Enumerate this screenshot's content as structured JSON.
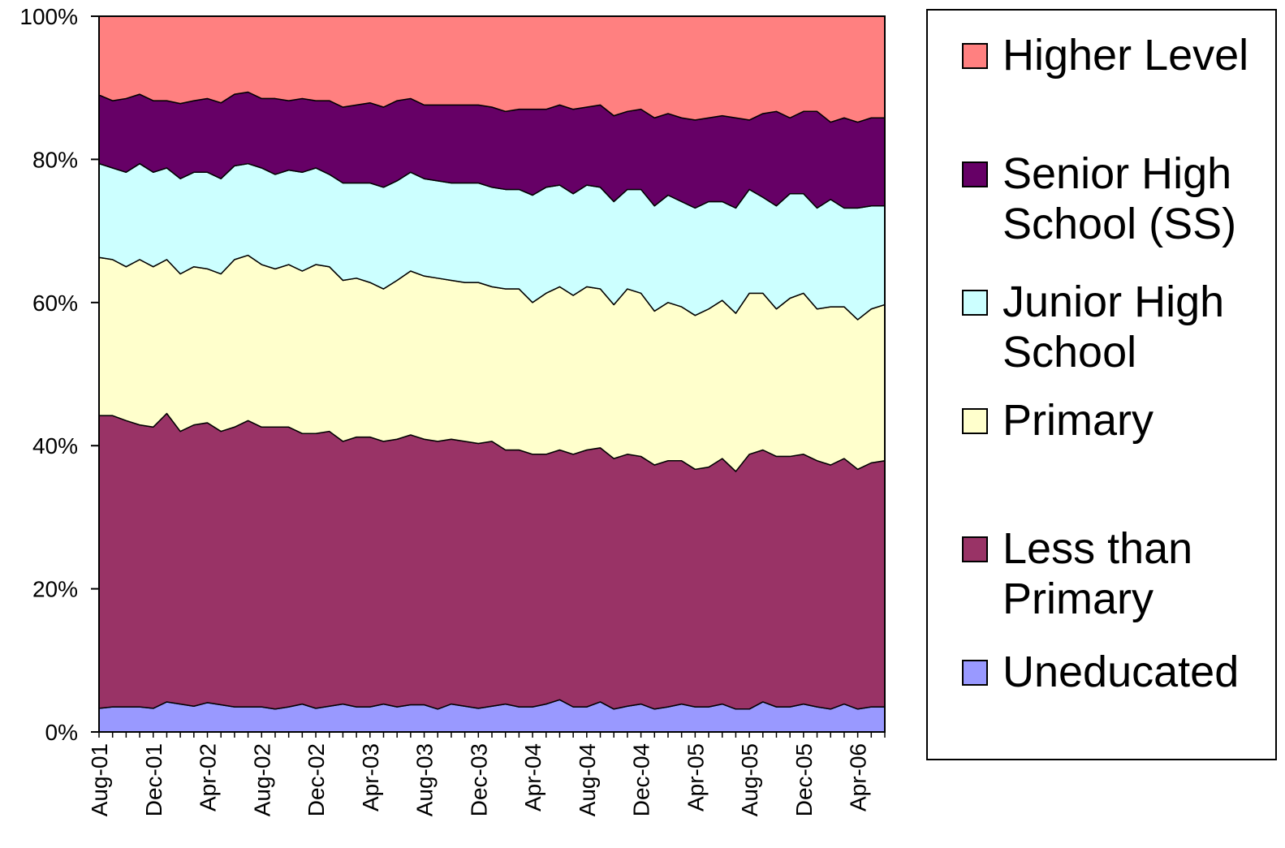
{
  "chart_data": {
    "type": "area",
    "stacked": true,
    "percent": true,
    "title": "",
    "xlabel": "",
    "ylabel": "",
    "ylim": [
      0,
      100
    ],
    "y_ticks": [
      "0%",
      "20%",
      "40%",
      "60%",
      "80%",
      "100%"
    ],
    "x_tick_labels": [
      "Aug-01",
      "Dec-01",
      "Apr-02",
      "Aug-02",
      "Dec-02",
      "Apr-03",
      "Aug-03",
      "Dec-03",
      "Apr-04",
      "Aug-04",
      "Dec-04",
      "Apr-05",
      "Aug-05",
      "Dec-05",
      "Apr-06"
    ],
    "legend_position": "right",
    "cumulative_boundaries": [
      {
        "name": "Uneducated",
        "color": "#9999FF",
        "values": [
          3.3,
          3.5,
          3.5,
          3.5,
          3.3,
          4.2,
          3.9,
          3.6,
          4.1,
          3.8,
          3.5,
          3.5,
          3.5,
          3.2,
          3.5,
          3.9,
          3.3,
          3.6,
          3.9,
          3.5,
          3.5,
          3.9,
          3.5,
          3.8,
          3.8,
          3.2,
          3.9,
          3.6,
          3.3,
          3.6,
          3.9,
          3.5,
          3.5,
          3.9,
          4.5,
          3.5,
          3.5,
          4.2,
          3.2,
          3.6,
          3.9,
          3.2,
          3.5,
          3.9,
          3.5,
          3.5,
          3.9,
          3.2,
          3.2,
          4.2,
          3.5,
          3.5,
          3.9,
          3.5,
          3.2,
          3.9,
          3.2,
          3.5,
          3.5
        ]
      },
      {
        "name": "Less than Primary",
        "color": "#993366",
        "values": [
          44.2,
          44.2,
          43.5,
          42.9,
          42.6,
          44.5,
          42.0,
          42.9,
          43.2,
          42.0,
          42.6,
          43.5,
          42.6,
          42.6,
          42.6,
          41.7,
          41.7,
          42.0,
          40.6,
          41.2,
          41.2,
          40.6,
          40.9,
          41.5,
          40.9,
          40.6,
          40.9,
          40.6,
          40.3,
          40.6,
          39.4,
          39.4,
          38.8,
          38.8,
          39.4,
          38.8,
          39.4,
          39.7,
          38.2,
          38.8,
          38.5,
          37.3,
          37.9,
          37.9,
          36.7,
          37.0,
          38.2,
          36.4,
          38.8,
          39.4,
          38.5,
          38.5,
          38.8,
          37.9,
          37.3,
          38.2,
          36.7,
          37.6,
          37.9
        ]
      },
      {
        "name": "Primary",
        "color": "#FFFFCC",
        "values": [
          66.3,
          66.0,
          65.0,
          66.0,
          65.0,
          66.0,
          64.0,
          65.0,
          64.7,
          64.0,
          66.0,
          66.6,
          65.3,
          64.7,
          65.3,
          64.4,
          65.3,
          65.0,
          63.1,
          63.4,
          62.8,
          61.9,
          63.1,
          64.4,
          63.7,
          63.4,
          63.1,
          62.8,
          62.8,
          62.2,
          61.9,
          61.9,
          60.0,
          61.3,
          62.2,
          61.0,
          62.2,
          61.9,
          59.7,
          61.9,
          61.3,
          58.8,
          60.0,
          59.4,
          58.2,
          59.1,
          60.3,
          58.5,
          61.3,
          61.3,
          59.1,
          60.6,
          61.3,
          59.1,
          59.4,
          59.4,
          57.6,
          59.1,
          59.7
        ]
      },
      {
        "name": "Junior High School",
        "color": "#CCFFFF",
        "values": [
          79.4,
          78.8,
          78.2,
          79.4,
          78.2,
          78.8,
          77.3,
          78.2,
          78.2,
          77.3,
          79.1,
          79.4,
          78.8,
          77.9,
          78.5,
          78.2,
          78.8,
          77.9,
          76.7,
          76.7,
          76.7,
          76.1,
          77.0,
          78.2,
          77.3,
          77.0,
          76.7,
          76.7,
          76.7,
          76.1,
          75.8,
          75.8,
          75.0,
          76.1,
          76.4,
          75.2,
          76.4,
          76.1,
          74.1,
          75.8,
          75.8,
          73.5,
          75.0,
          74.1,
          73.2,
          74.1,
          74.1,
          73.2,
          75.8,
          74.7,
          73.5,
          75.2,
          75.2,
          73.2,
          74.4,
          73.2,
          73.2,
          73.5,
          73.5
        ]
      },
      {
        "name": "Senior High School (SS)",
        "color": "#660066",
        "values": [
          89.0,
          88.2,
          88.5,
          89.1,
          88.2,
          88.2,
          87.8,
          88.2,
          88.5,
          87.9,
          89.1,
          89.4,
          88.5,
          88.5,
          88.2,
          88.5,
          88.2,
          88.2,
          87.3,
          87.6,
          87.9,
          87.3,
          88.2,
          88.5,
          87.6,
          87.6,
          87.6,
          87.6,
          87.6,
          87.3,
          86.7,
          87.0,
          87.0,
          87.0,
          87.6,
          87.0,
          87.3,
          87.6,
          86.1,
          86.7,
          87.0,
          85.8,
          86.4,
          85.8,
          85.5,
          85.8,
          86.1,
          85.8,
          85.5,
          86.4,
          86.7,
          85.8,
          86.7,
          86.7,
          85.2,
          85.8,
          85.2,
          85.8,
          85.8
        ]
      },
      {
        "name": "Higher Level",
        "color": "#FF8080",
        "values": [
          100,
          100,
          100,
          100,
          100,
          100,
          100,
          100,
          100,
          100,
          100,
          100,
          100,
          100,
          100,
          100,
          100,
          100,
          100,
          100,
          100,
          100,
          100,
          100,
          100,
          100,
          100,
          100,
          100,
          100,
          100,
          100,
          100,
          100,
          100,
          100,
          100,
          100,
          100,
          100,
          100,
          100,
          100,
          100,
          100,
          100,
          100,
          100,
          100,
          100,
          100,
          100,
          100,
          100,
          100,
          100,
          100,
          100,
          100
        ]
      }
    ],
    "legend": [
      {
        "label": "Higher Level",
        "color": "#FF8080"
      },
      {
        "label": "Senior High School (SS)",
        "color": "#660066"
      },
      {
        "label": "Junior High School",
        "color": "#CCFFFF"
      },
      {
        "label": "Primary",
        "color": "#FFFFCC"
      },
      {
        "label": "Less than Primary",
        "color": "#993366"
      },
      {
        "label": "Uneducated",
        "color": "#9999FF"
      }
    ]
  }
}
